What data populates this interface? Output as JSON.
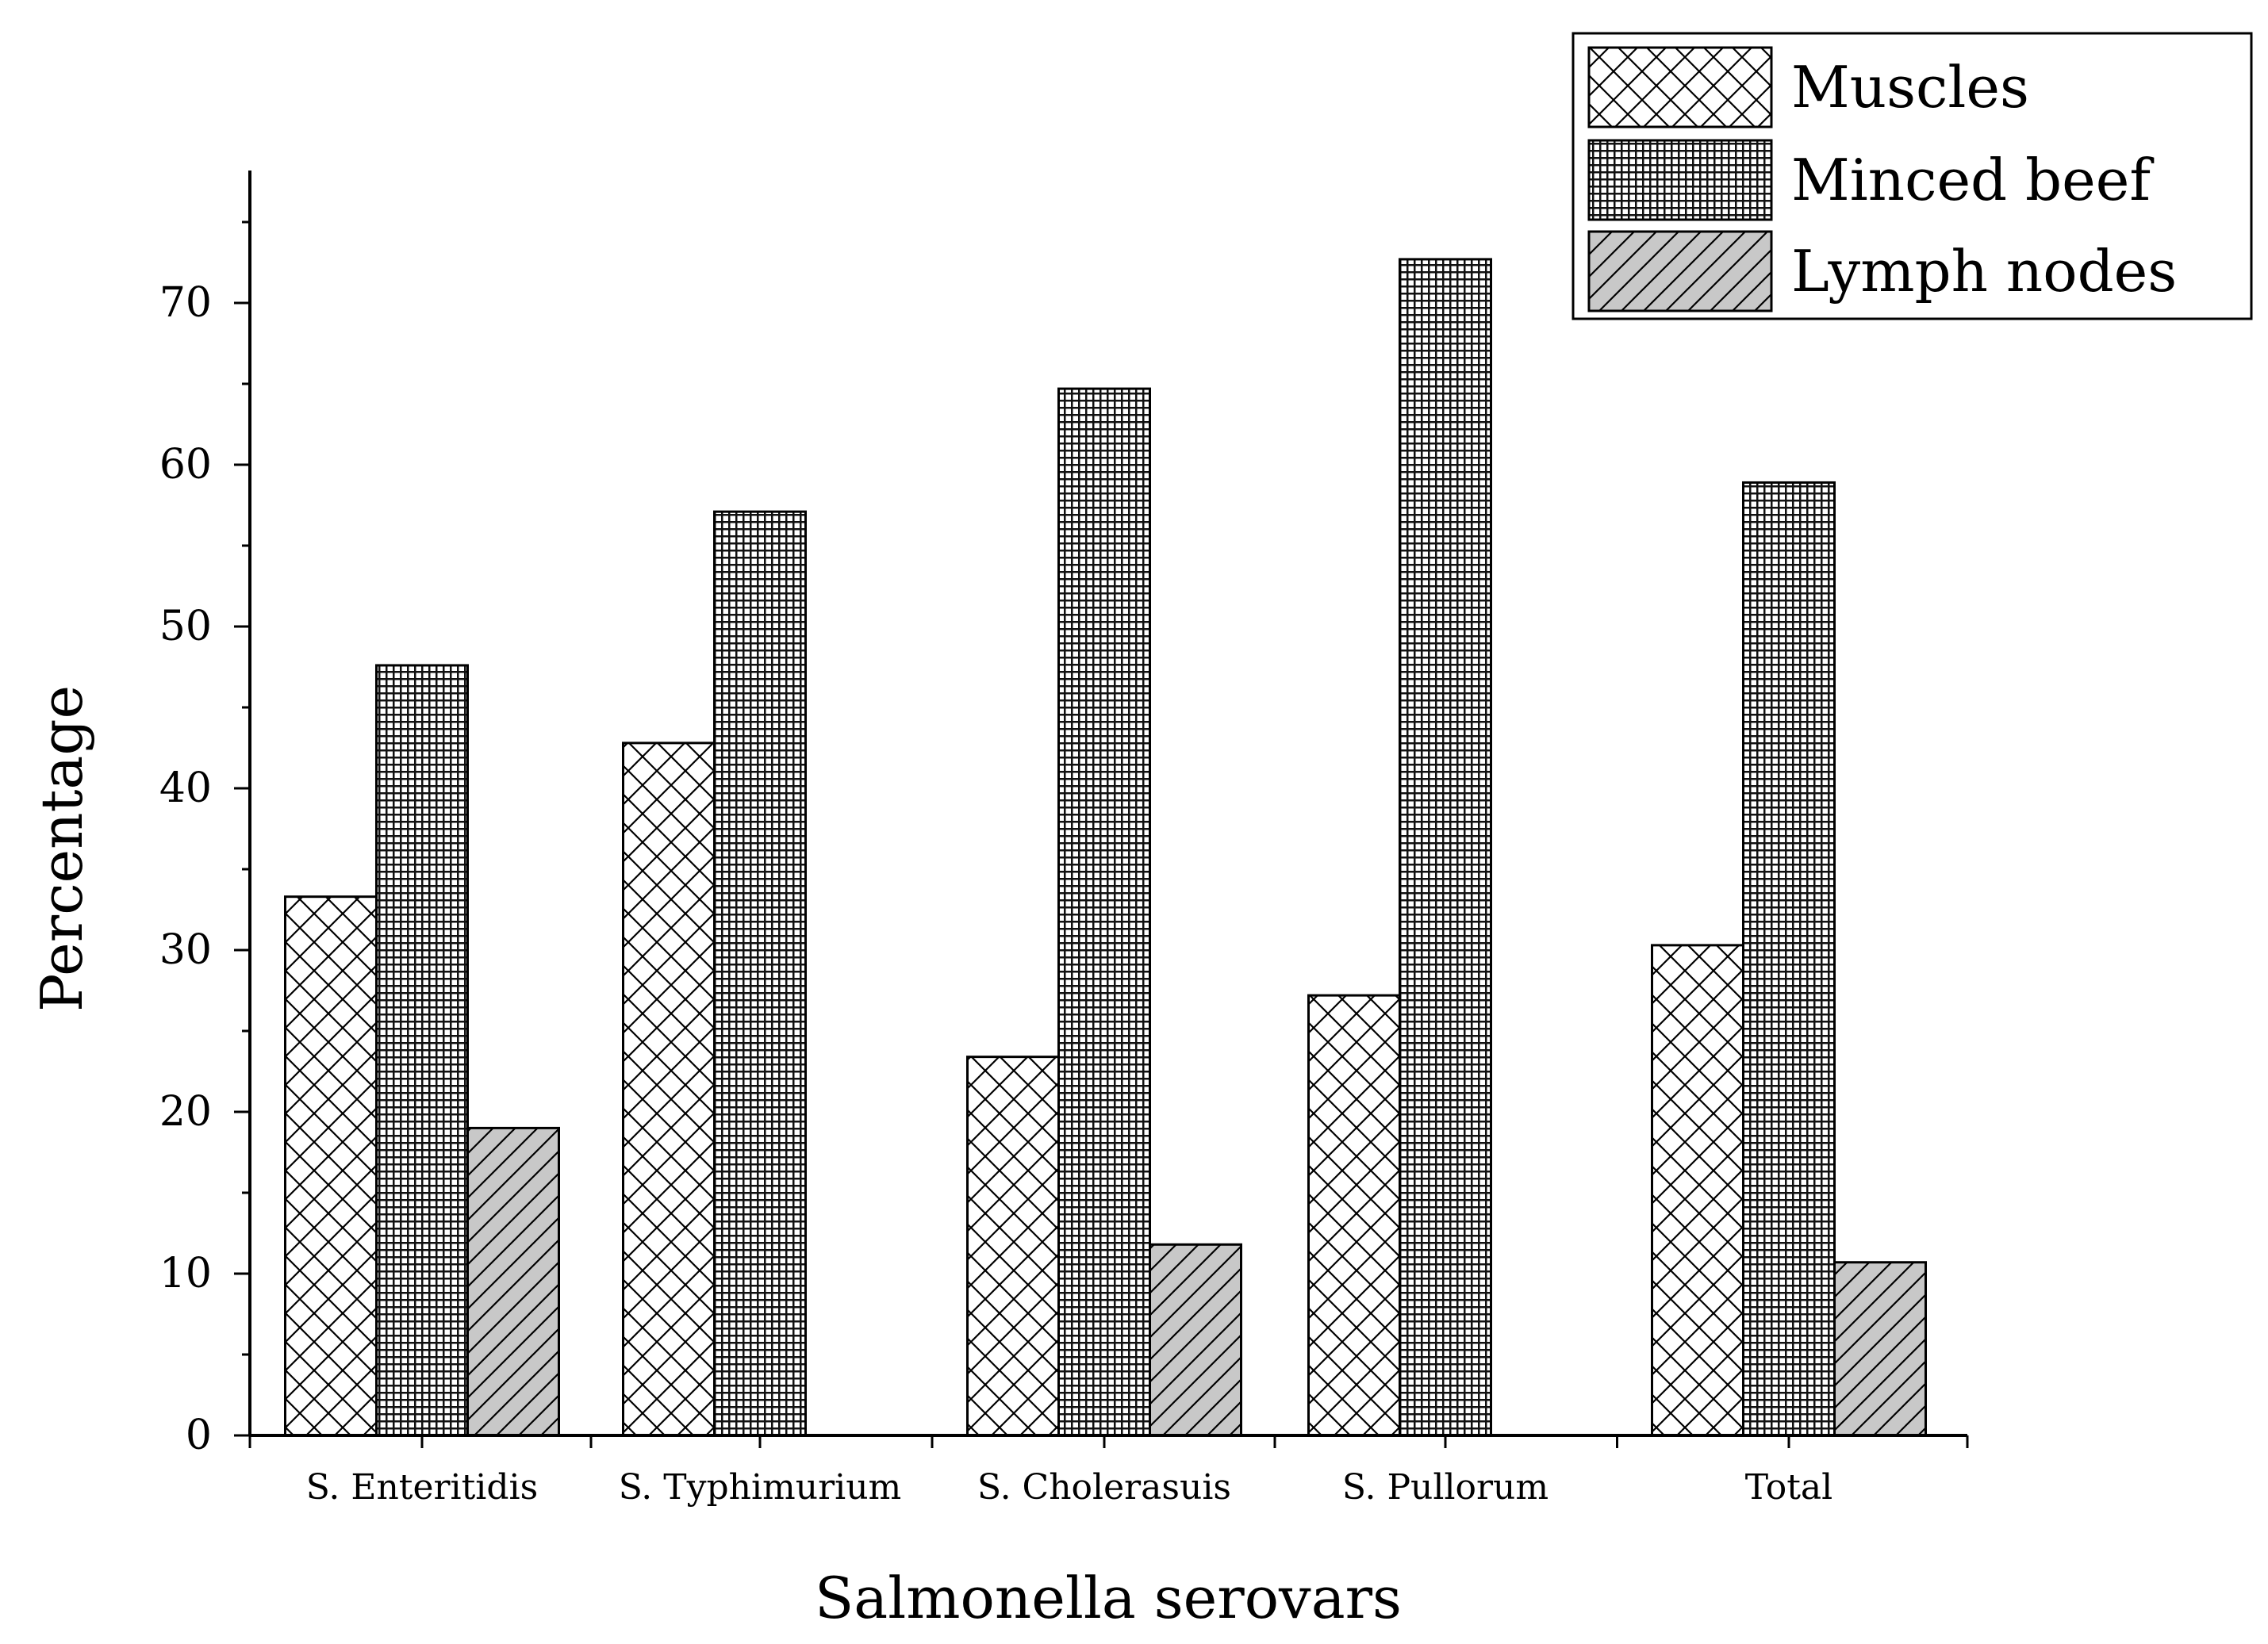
{
  "chart_data": {
    "type": "bar",
    "title": "",
    "xlabel": "Salmonella serovars",
    "ylabel": "Percentage",
    "ylim": [
      0,
      78
    ],
    "yticks": [
      0,
      10,
      20,
      30,
      40,
      50,
      60,
      70
    ],
    "categories": [
      "S. Enteritidis",
      "S. Typhimurium",
      "S. Cholerasuis",
      "S. Pullorum",
      "Total"
    ],
    "series": [
      {
        "name": "Muscles",
        "pattern": "crosshatch",
        "color": "#ffffff",
        "values": [
          33.3,
          42.8,
          23.4,
          27.2,
          30.3
        ]
      },
      {
        "name": "Minced beef",
        "pattern": "grid",
        "color": "#2a2a2a",
        "values": [
          47.6,
          57.1,
          64.7,
          72.7,
          58.9
        ]
      },
      {
        "name": "Lymph nodes",
        "pattern": "diagonal",
        "color": "#c8c8c8",
        "values": [
          19.0,
          0,
          11.8,
          0,
          10.7
        ]
      }
    ],
    "legend": "top-right",
    "grid": false
  }
}
